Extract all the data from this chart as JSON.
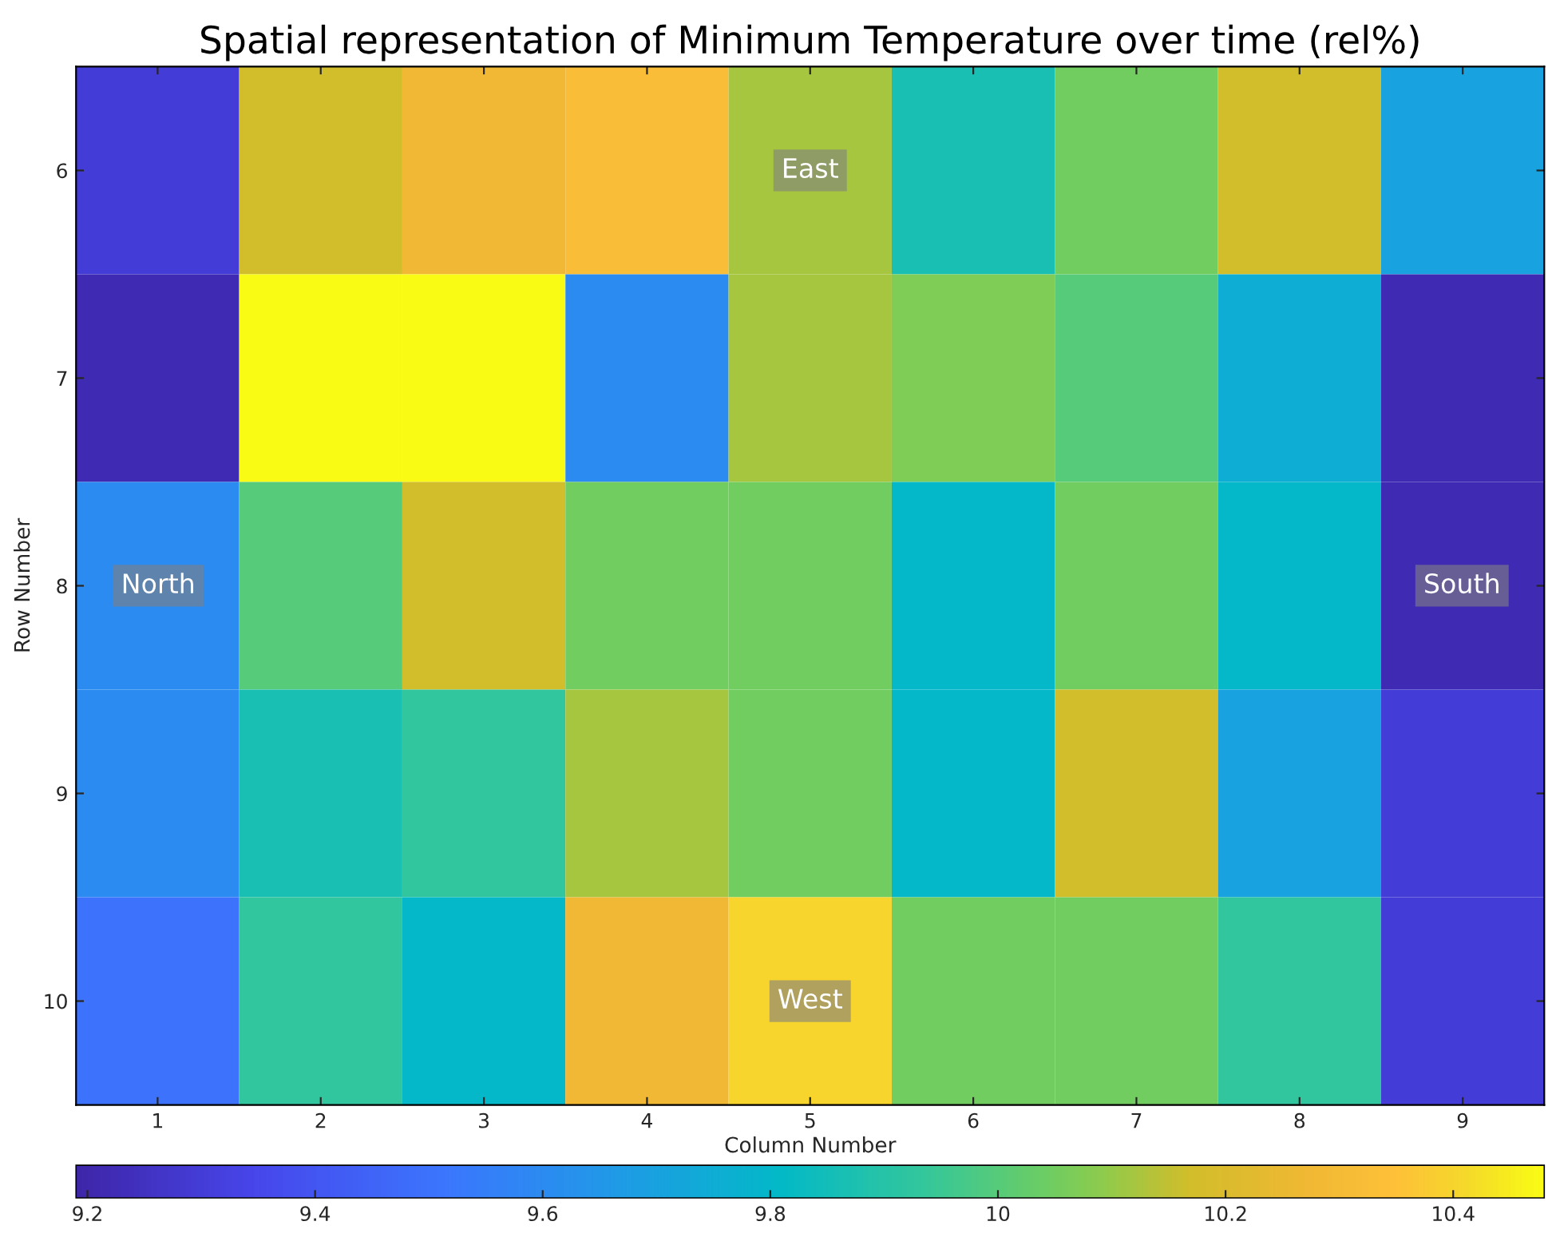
{
  "chart_data": {
    "type": "heatmap",
    "title": "Spatial representation of Minimum Temperature over time (rel%)",
    "xlabel": "Column Number",
    "ylabel": "Row Number",
    "categories": [
      "1",
      "2",
      "3",
      "4",
      "5",
      "6",
      "7",
      "8",
      "9"
    ],
    "y_categories": [
      "6",
      "7",
      "8",
      "9",
      "10"
    ],
    "cells": [
      [
        9.3,
        10.17,
        10.27,
        10.32,
        10.12,
        9.87,
        10.05,
        10.17,
        9.7
      ],
      [
        9.22,
        10.48,
        10.48,
        9.6,
        10.12,
        10.07,
        10.0,
        9.75,
        9.22
      ],
      [
        9.6,
        10.0,
        10.17,
        10.05,
        10.05,
        9.8,
        10.05,
        9.8,
        9.22
      ],
      [
        9.6,
        9.87,
        9.93,
        10.12,
        10.05,
        9.8,
        10.17,
        9.7,
        9.3
      ],
      [
        9.5,
        9.93,
        9.8,
        10.27,
        10.4,
        10.05,
        10.05,
        9.93,
        9.3
      ]
    ],
    "clim": [
      9.19,
      10.48
    ],
    "cticks": [
      9.2,
      {
        "value": 9.4,
        "label": "9.4"
      },
      9.6,
      9.8,
      10,
      10.2,
      10.4
    ],
    "annotations": [
      "East",
      "North",
      "South",
      "West"
    ]
  }
}
